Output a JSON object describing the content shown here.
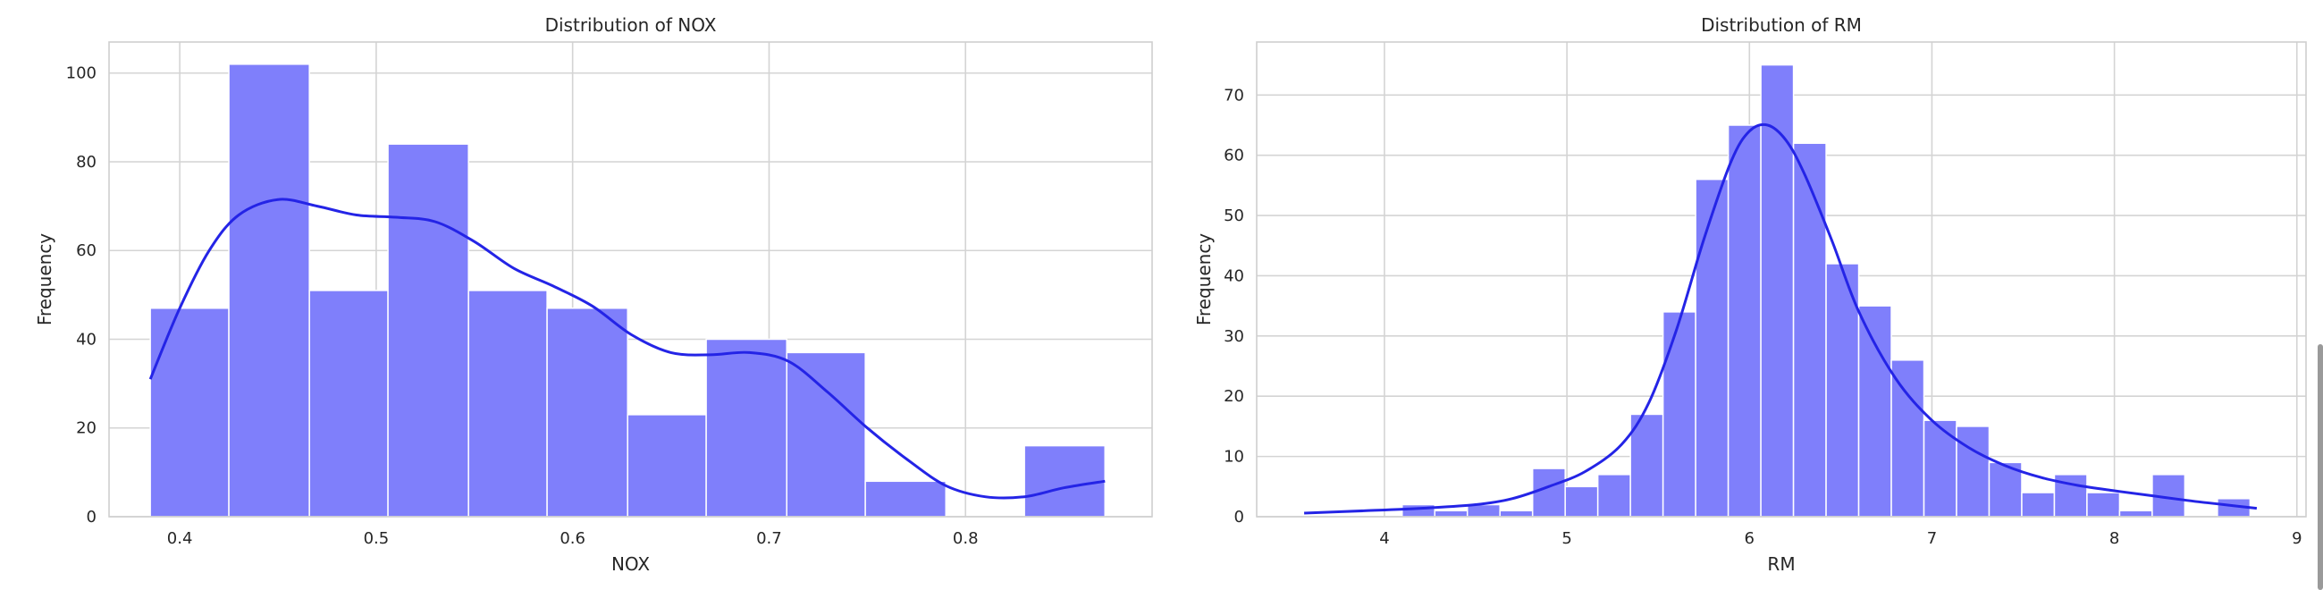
{
  "chart_data": [
    {
      "type": "histogram",
      "title": "Distribution of NOX",
      "xlabel": "NOX",
      "ylabel": "Frequency",
      "xlim": [
        0.364,
        0.895
      ],
      "ylim": [
        0,
        107
      ],
      "xticks": [
        0.4,
        0.5,
        0.6,
        0.7,
        0.8
      ],
      "xtick_labels": [
        "0.4",
        "0.5",
        "0.6",
        "0.7",
        "0.8"
      ],
      "yticks": [
        0,
        20,
        40,
        60,
        80,
        100
      ],
      "ytick_labels": [
        "0",
        "20",
        "40",
        "60",
        "80",
        "100"
      ],
      "grid": true,
      "bar_color": "#7f7ffb",
      "kde_color": "#2424e6",
      "bins": [
        {
          "x0": 0.385,
          "x1": 0.425,
          "count": 47
        },
        {
          "x0": 0.425,
          "x1": 0.466,
          "count": 102
        },
        {
          "x0": 0.466,
          "x1": 0.506,
          "count": 51
        },
        {
          "x0": 0.506,
          "x1": 0.547,
          "count": 84
        },
        {
          "x0": 0.547,
          "x1": 0.587,
          "count": 51
        },
        {
          "x0": 0.587,
          "x1": 0.628,
          "count": 47
        },
        {
          "x0": 0.628,
          "x1": 0.668,
          "count": 23
        },
        {
          "x0": 0.668,
          "x1": 0.709,
          "count": 40
        },
        {
          "x0": 0.709,
          "x1": 0.749,
          "count": 37
        },
        {
          "x0": 0.749,
          "x1": 0.79,
          "count": 8
        },
        {
          "x0": 0.79,
          "x1": 0.83,
          "count": 0
        },
        {
          "x0": 0.83,
          "x1": 0.871,
          "count": 16
        }
      ],
      "kde": [
        [
          0.385,
          31
        ],
        [
          0.4,
          47
        ],
        [
          0.415,
          60
        ],
        [
          0.43,
          68
        ],
        [
          0.45,
          71.5
        ],
        [
          0.47,
          70
        ],
        [
          0.49,
          68
        ],
        [
          0.51,
          67.5
        ],
        [
          0.53,
          66.5
        ],
        [
          0.55,
          62
        ],
        [
          0.57,
          56
        ],
        [
          0.59,
          52
        ],
        [
          0.61,
          47.5
        ],
        [
          0.63,
          41
        ],
        [
          0.65,
          37
        ],
        [
          0.67,
          36.5
        ],
        [
          0.69,
          37
        ],
        [
          0.71,
          35
        ],
        [
          0.73,
          28
        ],
        [
          0.75,
          20
        ],
        [
          0.77,
          13
        ],
        [
          0.79,
          7
        ],
        [
          0.81,
          4.5
        ],
        [
          0.83,
          4.5
        ],
        [
          0.85,
          6.5
        ],
        [
          0.871,
          8
        ]
      ]
    },
    {
      "type": "histogram",
      "title": "Distribution of RM",
      "xlabel": "RM",
      "ylabel": "Frequency",
      "xlim": [
        3.3,
        9.05
      ],
      "ylim": [
        0,
        78.8
      ],
      "xticks": [
        4,
        5,
        6,
        7,
        8,
        9
      ],
      "xtick_labels": [
        "4",
        "5",
        "6",
        "7",
        "8",
        "9"
      ],
      "yticks": [
        0,
        10,
        20,
        30,
        40,
        50,
        60,
        70
      ],
      "ytick_labels": [
        "0",
        "10",
        "20",
        "30",
        "40",
        "50",
        "60",
        "70"
      ],
      "grid": true,
      "bar_color": "#7f7ffb",
      "kde_color": "#2424e6",
      "bin_start": 3.561,
      "bin_width": 0.1787,
      "counts": [
        0,
        0,
        0,
        2,
        1,
        2,
        1,
        8,
        5,
        7,
        17,
        34,
        56,
        65,
        75,
        62,
        42,
        35,
        26,
        16,
        15,
        9,
        4,
        7,
        4,
        1,
        7,
        0,
        3
      ],
      "kde": [
        [
          3.56,
          0.6
        ],
        [
          3.9,
          1.0
        ],
        [
          4.2,
          1.4
        ],
        [
          4.5,
          2.0
        ],
        [
          4.7,
          3.0
        ],
        [
          4.9,
          5.0
        ],
        [
          5.1,
          7.5
        ],
        [
          5.3,
          12
        ],
        [
          5.45,
          19
        ],
        [
          5.6,
          31
        ],
        [
          5.75,
          46
        ],
        [
          5.9,
          59
        ],
        [
          6.0,
          64
        ],
        [
          6.1,
          65
        ],
        [
          6.2,
          62.5
        ],
        [
          6.3,
          57
        ],
        [
          6.45,
          46
        ],
        [
          6.6,
          34
        ],
        [
          6.8,
          23
        ],
        [
          7.0,
          16
        ],
        [
          7.2,
          11.5
        ],
        [
          7.4,
          8.5
        ],
        [
          7.6,
          6.5
        ],
        [
          7.8,
          5.2
        ],
        [
          8.0,
          4.3
        ],
        [
          8.2,
          3.5
        ],
        [
          8.4,
          2.7
        ],
        [
          8.6,
          2.0
        ],
        [
          8.78,
          1.4
        ]
      ]
    }
  ]
}
